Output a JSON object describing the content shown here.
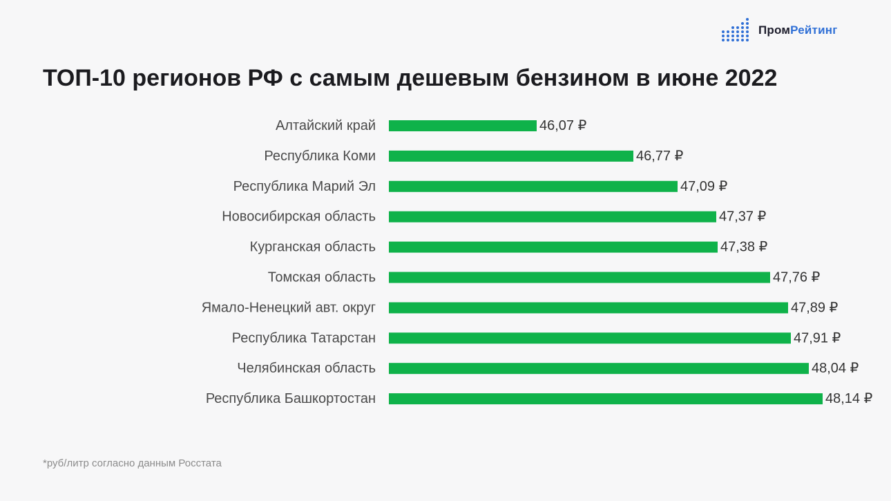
{
  "logo": {
    "icon": "bar-dots-icon",
    "text_part1": "Пром",
    "text_part2": "Рейтинг",
    "accent_color": "#2f6fd6"
  },
  "title": "ТОП-10 регионов РФ с самым дешевым бензином в июне 2022",
  "footnote": "*руб/литр согласно данным Росстата",
  "chart_data": {
    "type": "bar",
    "orientation": "horizontal",
    "title": "ТОП-10 регионов РФ с самым дешевым бензином в июне 2022",
    "xlabel": "",
    "ylabel": "",
    "unit": "₽",
    "bar_color": "#0fb24a",
    "xlim": [
      45.0,
      48.5
    ],
    "grid": false,
    "categories": [
      "Алтайский край",
      "Республика Коми",
      "Республика Марий Эл",
      "Новосибирская область",
      "Курганская область",
      "Томская область",
      "Ямало-Ненецкий авт. округ",
      "Республика Татарстан",
      "Челябинская область",
      "Республика Башкортостан"
    ],
    "values": [
      46.07,
      46.77,
      47.09,
      47.37,
      47.38,
      47.76,
      47.89,
      47.91,
      48.04,
      48.14
    ],
    "value_labels": [
      "46,07 ₽",
      "46,77 ₽",
      "47,09 ₽",
      "47,37 ₽",
      "47,38 ₽",
      "47,76 ₽",
      "47,89 ₽",
      "47,91 ₽",
      "48,04 ₽",
      "48,14 ₽"
    ]
  }
}
